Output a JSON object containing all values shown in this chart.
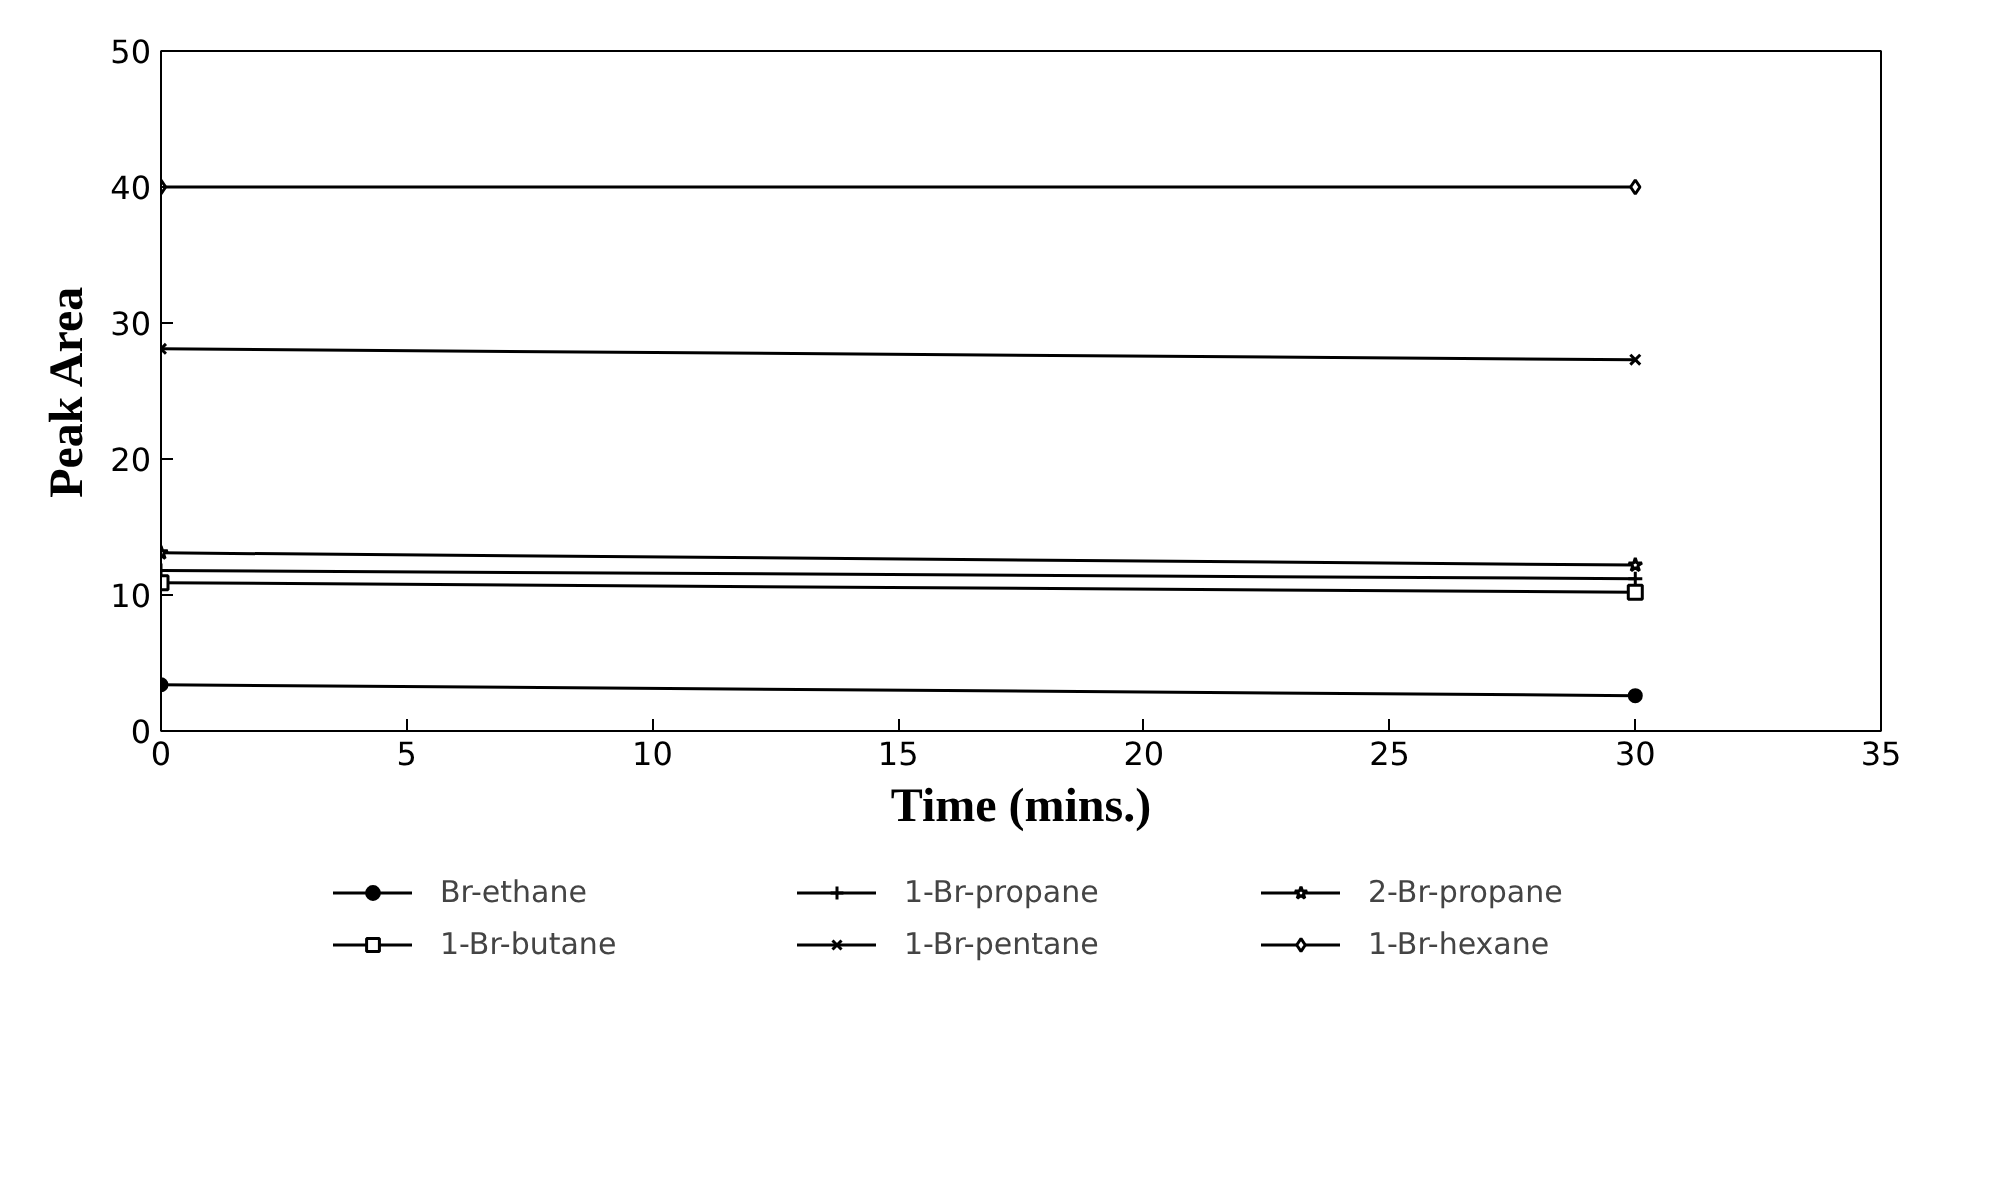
{
  "chart_data": {
    "type": "line",
    "xlabel": "Time (mins.)",
    "ylabel": "Peak Area",
    "x": [
      0,
      30
    ],
    "series": [
      {
        "name": "Br-ethane",
        "color": "#000000",
        "marker": "circle",
        "values": [
          3.4,
          2.6
        ]
      },
      {
        "name": "1-Br-propane",
        "color": "#000000",
        "marker": "cross",
        "values": [
          11.8,
          11.2
        ]
      },
      {
        "name": "2-Br-propane",
        "color": "#000000",
        "marker": "star",
        "values": [
          13.1,
          12.2
        ]
      },
      {
        "name": "1-Br-butane",
        "color": "#000000",
        "marker": "square",
        "values": [
          10.9,
          10.2
        ]
      },
      {
        "name": "1-Br-pentane",
        "color": "#000000",
        "marker": "x",
        "values": [
          28.1,
          27.3
        ]
      },
      {
        "name": "1-Br-hexane",
        "color": "#000000",
        "marker": "diamond",
        "values": [
          40.0,
          40.0
        ]
      }
    ],
    "xlim": [
      0,
      35
    ],
    "xticks": [
      0,
      5,
      10,
      15,
      20,
      25,
      30,
      35
    ],
    "ylim": [
      0,
      50
    ],
    "yticks": [
      0,
      10,
      20,
      30,
      40,
      50
    ],
    "grid": false,
    "legend": "bottom",
    "line_style": "solid"
  }
}
